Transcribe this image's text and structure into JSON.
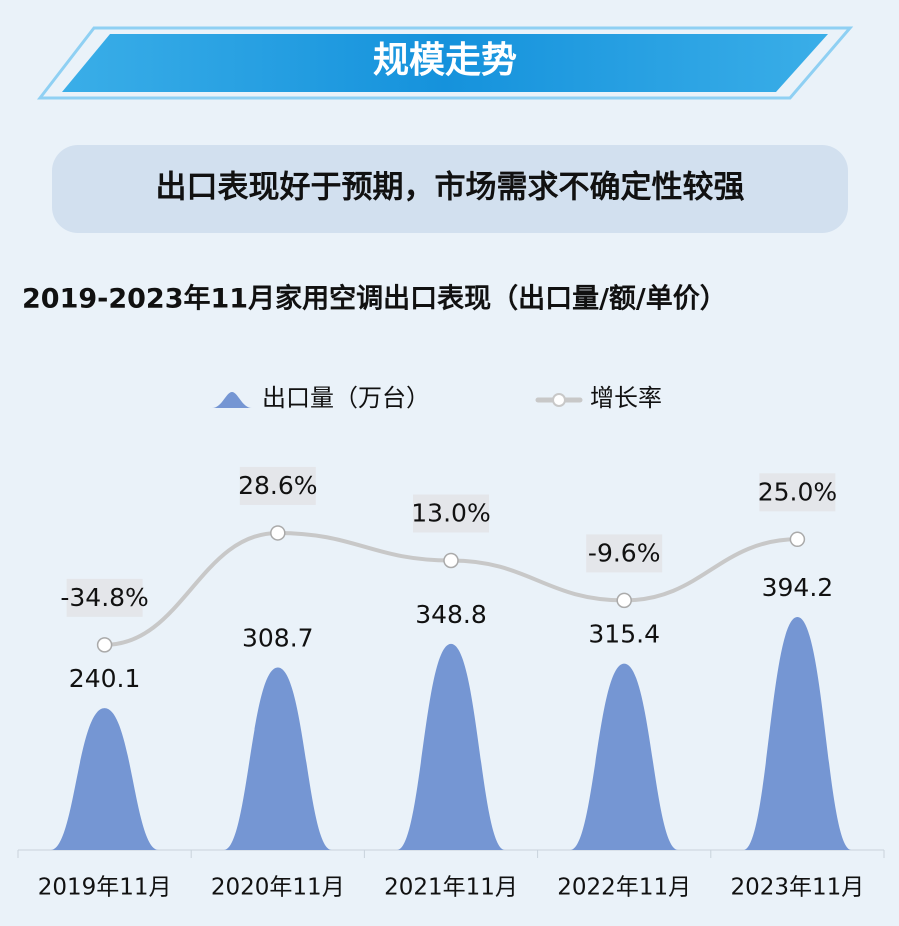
{
  "header": {
    "title": "规模走势"
  },
  "subtitle": "出口表现好于预期，市场需求不确定性较强",
  "chart_data": {
    "type": "bar",
    "title": "2019-2023年11月家用空调出口表现（出口量/额/单价）",
    "categories": [
      "2019年11月",
      "2020年11月",
      "2021年11月",
      "2022年11月",
      "2023年11月"
    ],
    "series": [
      {
        "name": "出口量（万台）",
        "type": "bar",
        "color": "#7596d3",
        "values": [
          240.1,
          308.7,
          348.8,
          315.4,
          394.2
        ]
      },
      {
        "name": "增长率",
        "type": "line",
        "axis": "y2",
        "color": "#c8c8c8",
        "values": [
          -34.8,
          28.6,
          13.0,
          -9.6,
          25.0
        ],
        "value_labels": [
          "-34.8%",
          "28.6%",
          "13.0%",
          "-9.6%",
          "25.0%"
        ]
      }
    ],
    "ylim": [
      0,
      500
    ],
    "y2lim": [
      -100,
      60
    ]
  }
}
